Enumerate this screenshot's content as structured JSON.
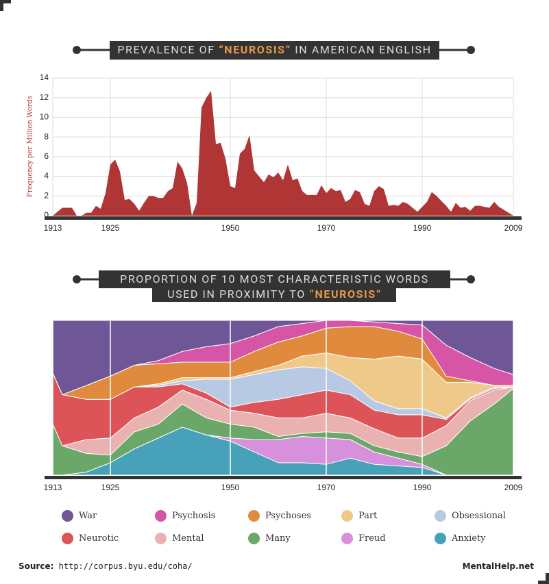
{
  "chart_data": [
    {
      "type": "area",
      "title": [
        "PREVALENCE OF",
        "“NEUROSIS”",
        "IN AMERICAN ENGLISH"
      ],
      "y_label": "Frequency per Million Words",
      "color": "#b03535",
      "x": [
        1913,
        1915,
        1917,
        1918,
        1919,
        1920,
        1921,
        1922,
        1923,
        1924,
        1925,
        1926,
        1927,
        1928,
        1929,
        1930,
        1931,
        1932,
        1933,
        1934,
        1935,
        1936,
        1937,
        1938,
        1939,
        1940,
        1941,
        1942,
        1943,
        1944,
        1945,
        1946,
        1947,
        1948,
        1949,
        1950,
        1951,
        1952,
        1953,
        1954,
        1955,
        1956,
        1957,
        1958,
        1959,
        1960,
        1961,
        1962,
        1963,
        1964,
        1965,
        1966,
        1967,
        1968,
        1969,
        1970,
        1971,
        1972,
        1973,
        1974,
        1975,
        1976,
        1977,
        1978,
        1979,
        1980,
        1981,
        1982,
        1983,
        1984,
        1985,
        1986,
        1987,
        1988,
        1989,
        1990,
        1991,
        1992,
        1993,
        1994,
        1995,
        1996,
        1997,
        1998,
        1999,
        2000,
        2001,
        2002,
        2003,
        2004,
        2005,
        2006,
        2007,
        2008,
        2009
      ],
      "values": [
        0,
        0.8,
        0.8,
        0,
        0,
        0.3,
        0.3,
        1.0,
        0.7,
        2.3,
        5.2,
        5.7,
        4.5,
        1.6,
        1.7,
        1.2,
        0.5,
        1.3,
        2.0,
        2.0,
        1.8,
        1.8,
        2.5,
        2.8,
        5.5,
        4.8,
        3.3,
        0,
        1.3,
        11.0,
        12.0,
        12.7,
        7.3,
        7.4,
        5.8,
        3.0,
        2.8,
        6.3,
        6.8,
        8.2,
        4.6,
        4.0,
        3.4,
        4.2,
        3.9,
        4.4,
        3.6,
        5.2,
        3.6,
        3.8,
        2.5,
        2.1,
        2.1,
        2.1,
        3.1,
        2.3,
        2.8,
        2.5,
        2.6,
        1.4,
        1.7,
        2.6,
        2.4,
        1.2,
        1.0,
        2.5,
        3.0,
        2.7,
        1.0,
        1.1,
        1.0,
        1.4,
        1.2,
        0.8,
        0.4,
        0.9,
        1.4,
        2.4,
        2.0,
        1.5,
        1.0,
        0.4,
        1.3,
        0.8,
        0.9,
        0.5,
        1.0,
        1.0,
        0.9,
        0.8,
        1.4,
        0.9,
        0.6,
        0.3,
        0
      ],
      "xlim": [
        1913,
        2009
      ],
      "xticks": [
        1913,
        1925,
        1950,
        1970,
        1990,
        2009
      ],
      "ylim": [
        0,
        14
      ],
      "yticks": [
        0,
        2,
        4,
        6,
        8,
        10,
        12,
        14
      ],
      "grid": true
    },
    {
      "type": "stacked_area",
      "title": [
        "PROPORTION OF 10 MOST CHARACTERISTIC WORDS",
        "USED IN PROXIMITY TO",
        "“NEUROSIS”"
      ],
      "x": [
        1913,
        1915,
        1920,
        1925,
        1930,
        1935,
        1940,
        1945,
        1950,
        1955,
        1960,
        1965,
        1970,
        1975,
        1980,
        1985,
        1990,
        1995,
        2000,
        2005,
        2009
      ],
      "xlim": [
        1913,
        2009
      ],
      "xticks": [
        1913,
        1925,
        1950,
        1970,
        1990,
        2009
      ],
      "ylim": [
        0,
        100
      ],
      "grid": true,
      "series": [
        {
          "name": "War",
          "color": "#6f5797",
          "values": [
            34,
            48,
            42,
            36,
            29,
            26,
            20,
            17,
            15,
            10,
            4,
            2,
            0,
            0,
            1,
            2,
            3,
            16,
            24,
            31,
            35
          ]
        },
        {
          "name": "Psychosis",
          "color": "#d655a6",
          "values": [
            0,
            0,
            0,
            0,
            0,
            2,
            7,
            10,
            12,
            10,
            10,
            8,
            5,
            4,
            3,
            5,
            9,
            20,
            15,
            11,
            7
          ]
        },
        {
          "name": "Psychoses",
          "color": "#e08a3e",
          "values": [
            0,
            0,
            9,
            15,
            14,
            13,
            10,
            10,
            10,
            13,
            15,
            13,
            16,
            20,
            21,
            16,
            13,
            4,
            1,
            0,
            0
          ]
        },
        {
          "name": "Part",
          "color": "#eec98a",
          "values": [
            0,
            0,
            0,
            0,
            0,
            1,
            2,
            1,
            1,
            2,
            3,
            7,
            10,
            15,
            27,
            34,
            32,
            23,
            10,
            1,
            1
          ]
        },
        {
          "name": "Obsessional",
          "color": "#b8c9e3",
          "values": [
            0,
            0,
            0,
            0,
            0,
            1,
            2,
            9,
            18,
            18,
            19,
            18,
            14,
            9,
            6,
            4,
            4,
            1,
            1,
            1,
            0
          ]
        },
        {
          "name": "Neurotic",
          "color": "#dc5358",
          "values": [
            33,
            33,
            26,
            25,
            20,
            13,
            4,
            4,
            2,
            7,
            12,
            15,
            15,
            15,
            12,
            15,
            15,
            4,
            1,
            1,
            0
          ]
        },
        {
          "name": "Mental",
          "color": "#eab1b1",
          "values": [
            0,
            0,
            9,
            11,
            9,
            11,
            9,
            12,
            9,
            9,
            12,
            10,
            12,
            10,
            11,
            9,
            12,
            13,
            13,
            9,
            1
          ]
        },
        {
          "name": "Many",
          "color": "#6aa769",
          "values": [
            33,
            19,
            12,
            5,
            11,
            9,
            15,
            11,
            9,
            8,
            2,
            2,
            4,
            4,
            4,
            4,
            5,
            19,
            35,
            46,
            56
          ]
        },
        {
          "name": "Freud",
          "color": "#d690dc",
          "values": [
            0,
            0,
            0,
            0,
            0,
            0,
            0,
            0,
            2,
            8,
            15,
            17,
            17,
            12,
            8,
            5,
            2,
            0,
            0,
            0,
            0
          ]
        },
        {
          "name": "Anxiety",
          "color": "#47a1b8",
          "values": [
            0,
            0,
            2,
            8,
            17,
            24,
            31,
            26,
            22,
            15,
            8,
            8,
            7,
            11,
            7,
            6,
            5,
            0,
            0,
            0,
            0
          ]
        }
      ]
    }
  ],
  "source_label": "Source:",
  "source_url": "http://corpus.byu.edu/coha/",
  "brand": "MentalHelp.net"
}
